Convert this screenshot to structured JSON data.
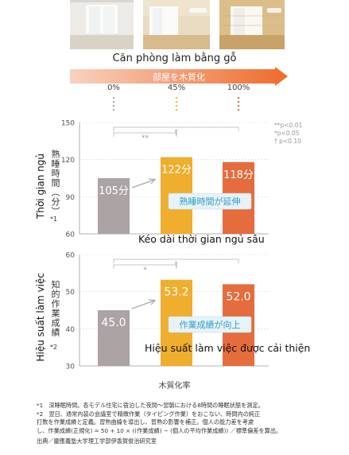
{
  "header": {
    "room_label_vi": "Căn phòng làm bằng gỗ",
    "arrow_label": "部屋を木質化"
  },
  "photos": [
    {
      "name": "room-photo-0"
    },
    {
      "name": "room-photo-45"
    },
    {
      "name": "room-photo-100"
    }
  ],
  "colors": {
    "bar_0": "#aca3a5",
    "bar_45": "#efae2d",
    "bar_100": "#e56c3d",
    "arrow_start": "#f7d2c0",
    "arrow_end": "#ef6a2a",
    "callout_bg": "#e7f3f8",
    "callout_text": "#2f9fc8"
  },
  "chart_data": [
    {
      "type": "bar",
      "categories": [
        "0%",
        "45%",
        "100%"
      ],
      "values": [
        105,
        122,
        118
      ],
      "value_labels": [
        "105分",
        "122分",
        "118分"
      ],
      "ylim": [
        60,
        150
      ],
      "yticks": [
        60,
        90,
        120,
        150
      ],
      "ylabel": "熟睡時間（分）",
      "ylabel_note": "*1",
      "ylabel_vi": "Thời gian ngủ",
      "significance": [
        {
          "from": 0,
          "to": 1,
          "mark": "**"
        },
        {
          "from": 0,
          "to": 2,
          "mark": "†"
        }
      ],
      "legend": [
        "**p<0.01",
        "*p<0.05",
        "† p<0.10"
      ],
      "callout": "熟睡時間が延伸",
      "subtitle_vi": "Kéo dài thời gian ngủ sâu"
    },
    {
      "type": "bar",
      "categories": [
        "0%",
        "45%",
        "100%"
      ],
      "values": [
        45.0,
        53.2,
        52.0
      ],
      "value_labels": [
        "45.0",
        "53.2",
        "52.0"
      ],
      "ylim": [
        30,
        60
      ],
      "yticks": [
        30,
        40,
        50,
        60
      ],
      "ylabel": "知的作業成績",
      "ylabel_note": "*2",
      "ylabel_vi": "Hiệu suất làm việc",
      "significance": [
        {
          "from": 0,
          "to": 1,
          "mark": "*"
        },
        {
          "from": 0,
          "to": 2,
          "mark": "†"
        }
      ],
      "callout": "作業成績が向上",
      "subtitle_vi": "Hiệu suất làm việc được cải thiện",
      "xlabel": "木質化率"
    }
  ],
  "notes": [
    "*1　深睡眠時間。各モデル住宅に宿泊した夜間～翌朝における8時間の睡眠状態を測定。",
    "*2　翌日、通常内装の会議室で精緻作業（タイピング作業）をおこない、時間内の純正",
    "打数を作業成績と定義。習熟曲線を導出し、習熟の影響を補正。個人の能力差を考慮",
    "し、作業成績(正規化) = 50 + 10 × ((作業成績) − (個人の平均作業成績)) ／標準偏差を算出。",
    "出典／慶應義塾大学理工学部伊香賀俊治研究室"
  ]
}
